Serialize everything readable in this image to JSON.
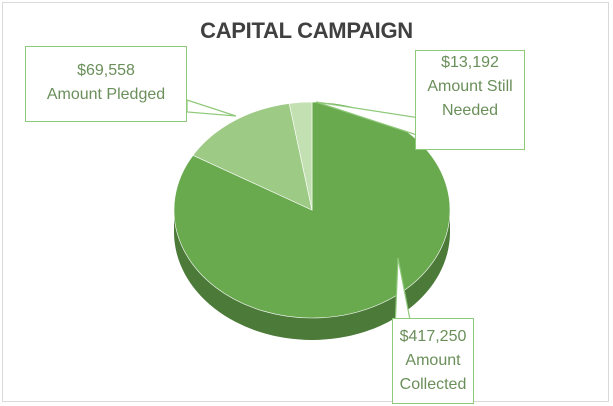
{
  "chart_data": {
    "type": "pie",
    "title": "CAPITAL CAMPAIGN",
    "slices": [
      {
        "label": "Amount Collected",
        "value": 417250,
        "value_text": "$417,250",
        "label_lines": [
          "Amount",
          "Collected"
        ],
        "color": "#6aaa4f"
      },
      {
        "label": "Amount Pledged",
        "value": 69558,
        "value_text": "$69,558",
        "label_lines": [
          "Amount Pledged"
        ],
        "color": "#9dca85"
      },
      {
        "label": "Amount Still Needed",
        "value": 13192,
        "value_text": "$13,192",
        "label_lines": [
          "Amount Still",
          "Needed"
        ],
        "color": "#c3e0b2"
      }
    ],
    "start_angle_deg": 0,
    "legend": "none",
    "style": "3d-pie"
  }
}
